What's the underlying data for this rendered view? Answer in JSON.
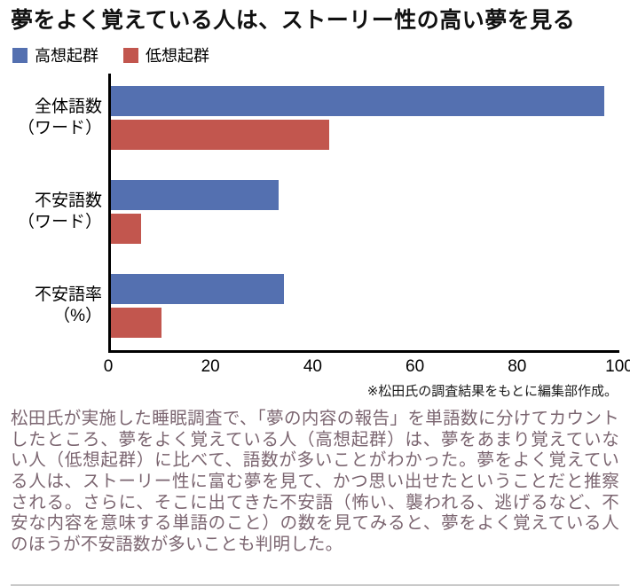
{
  "title": "夢をよく覚えている人は、ストーリー性の高い夢を見る",
  "legend": {
    "items": [
      {
        "label": "高想起群",
        "color": "#5470b0"
      },
      {
        "label": "低想起群",
        "color": "#c2564e"
      }
    ]
  },
  "chart_data": {
    "type": "bar",
    "orientation": "horizontal",
    "title": "夢をよく覚えている人は、ストーリー性の高い夢を見る",
    "categories": [
      [
        "全体語数",
        "（ワード）"
      ],
      [
        "不安語数",
        "（ワード）"
      ],
      [
        "不安語率",
        "（%）"
      ]
    ],
    "series": [
      {
        "name": "高想起群",
        "color": "#5470b0",
        "values": [
          97,
          33,
          34
        ]
      },
      {
        "name": "低想起群",
        "color": "#c2564e",
        "values": [
          43,
          6,
          10
        ]
      }
    ],
    "xlim": [
      0,
      100
    ],
    "xticks": [
      0,
      20,
      40,
      60,
      80,
      100
    ],
    "grid": false,
    "legend_position": "top-left"
  },
  "note": "※松田氏の調査結果をもとに編集部作成。",
  "paragraph": "松田氏が実施した睡眠調査で、「夢の内容の報告」を単語数に分けてカウントしたところ、夢をよく覚えている人（高想起群）は、夢をあまり覚えていない人（低想起群）に比べて、語数が多いことがわかった。夢をよく覚えている人は、ストーリー性に富む夢を見て、かつ思い出せたということだと推察される。さらに、そこに出てきた不安語（怖い、襲われる、逃げるなど、不安な内容を意味する単語のこと）の数を見てみると、夢をよく覚えている人のほうが不安語数が多いことも判明した。"
}
